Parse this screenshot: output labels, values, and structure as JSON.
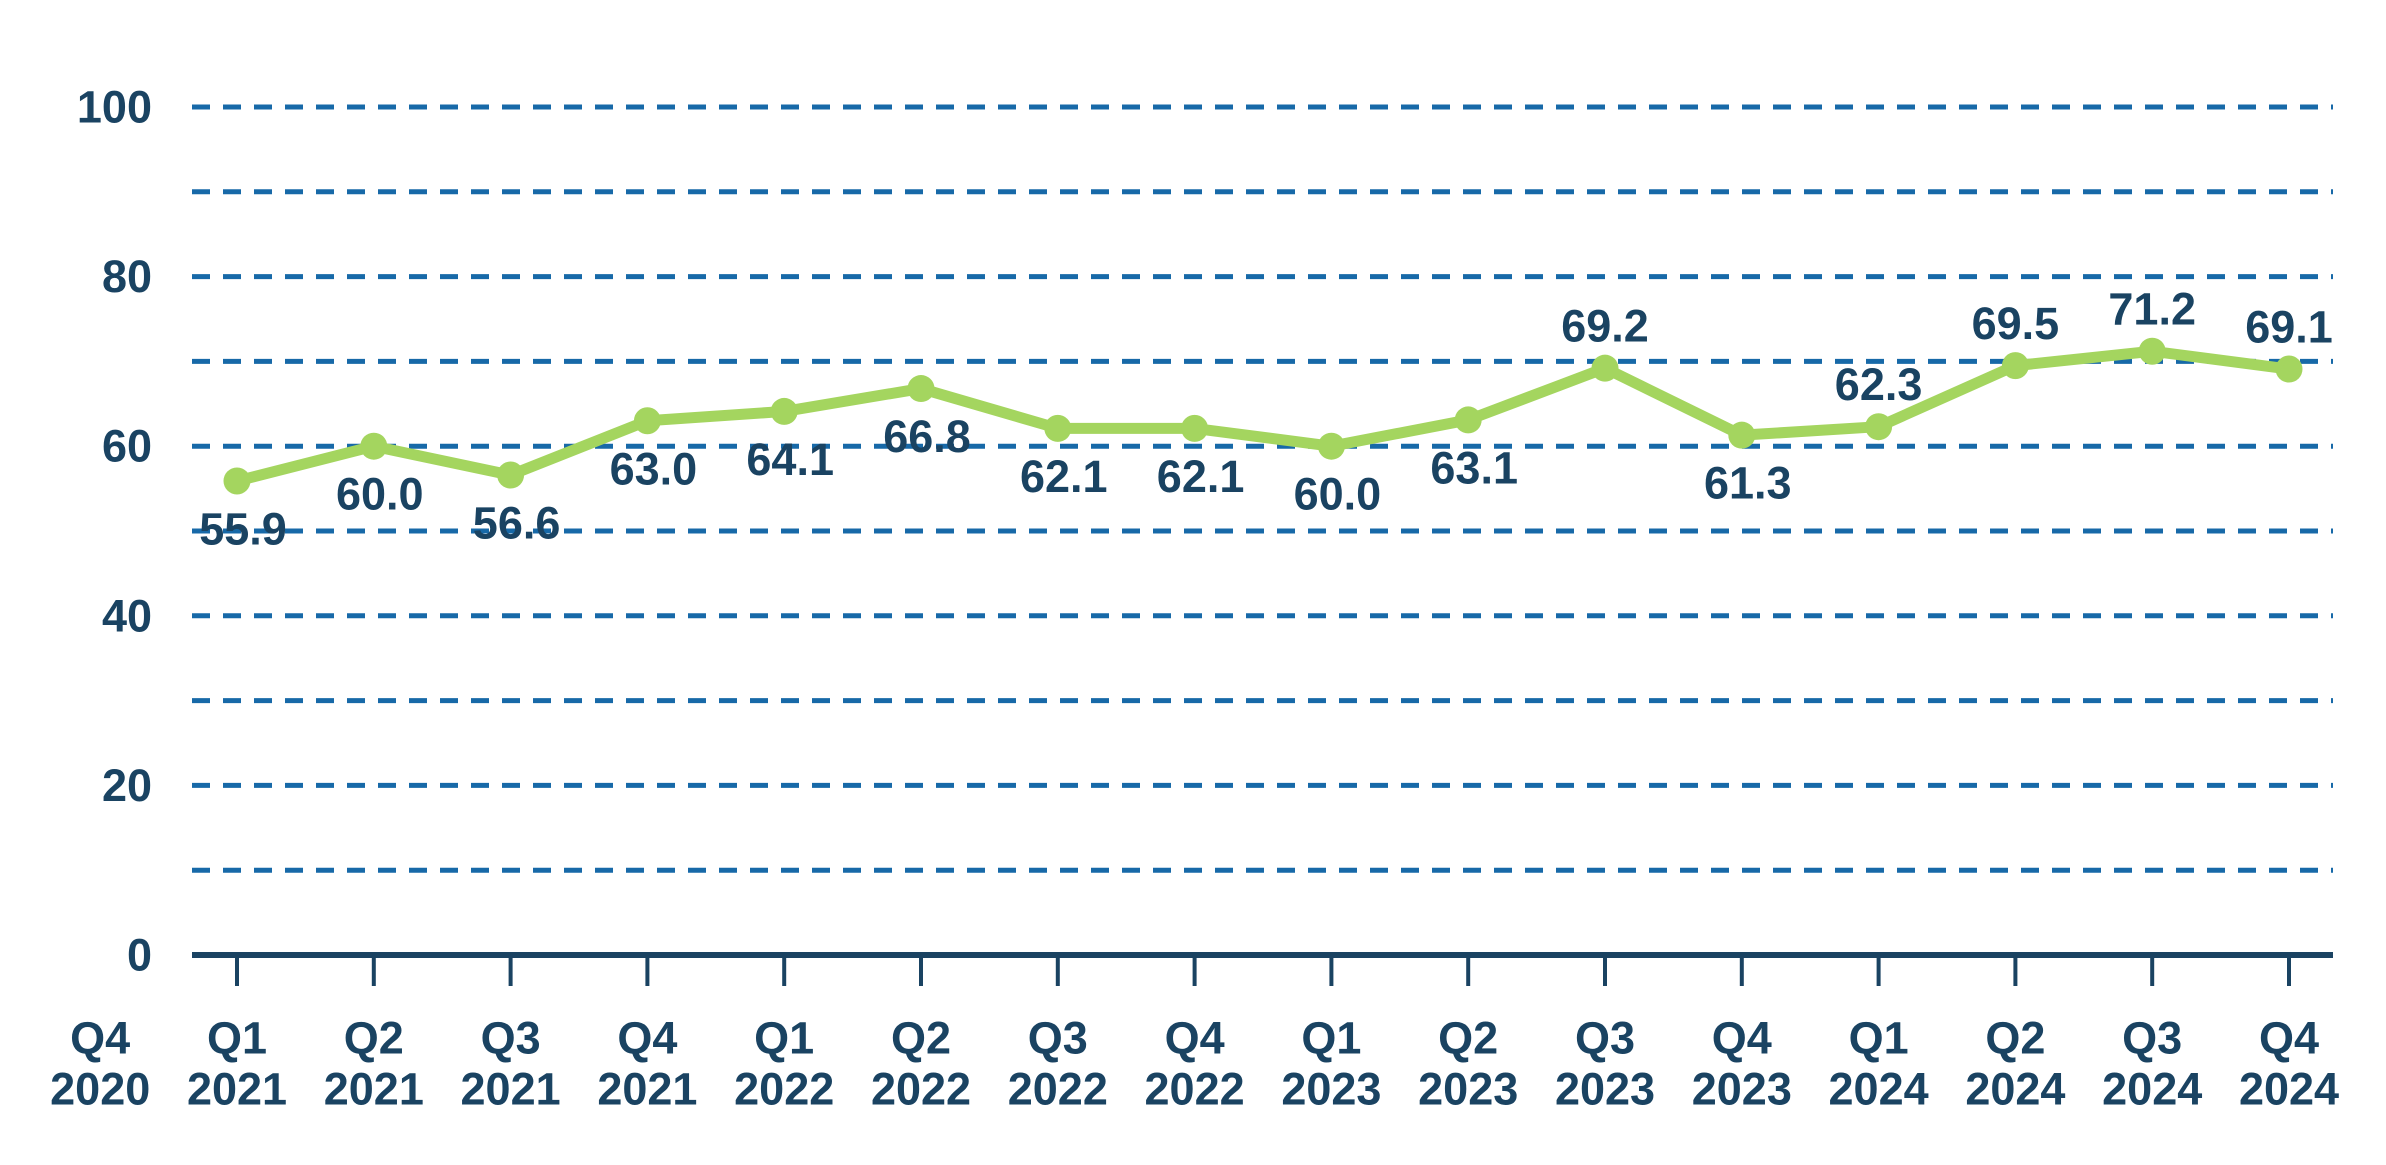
{
  "chart_data": {
    "type": "line",
    "title": "",
    "xlabel": "",
    "ylabel": "",
    "ylim": [
      0,
      100
    ],
    "grid": "horizontal-dashed",
    "legend": "none",
    "colors": {
      "line": "#a4d55f",
      "marker": "#a4d55f",
      "text": "#1a4362",
      "gridline": "#1769a8",
      "background": "#ffffff"
    },
    "y_axis": {
      "min": 0,
      "max": 100,
      "tick_labels": [
        {
          "value": 0,
          "label": "0"
        },
        {
          "value": 20,
          "label": "20"
        },
        {
          "value": 40,
          "label": "40"
        },
        {
          "value": 60,
          "label": "60"
        },
        {
          "value": 80,
          "label": "80"
        },
        {
          "value": 100,
          "label": "100"
        }
      ],
      "gridline_values": [
        10,
        20,
        30,
        40,
        50,
        60,
        70,
        80,
        90,
        100
      ]
    },
    "categories": [
      {
        "quarter": "Q4",
        "year": "2020",
        "has_tick": false
      },
      {
        "quarter": "Q1",
        "year": "2021",
        "has_tick": true
      },
      {
        "quarter": "Q2",
        "year": "2021",
        "has_tick": true
      },
      {
        "quarter": "Q3",
        "year": "2021",
        "has_tick": true
      },
      {
        "quarter": "Q4",
        "year": "2021",
        "has_tick": true
      },
      {
        "quarter": "Q1",
        "year": "2022",
        "has_tick": true
      },
      {
        "quarter": "Q2",
        "year": "2022",
        "has_tick": true
      },
      {
        "quarter": "Q3",
        "year": "2022",
        "has_tick": true
      },
      {
        "quarter": "Q4",
        "year": "2022",
        "has_tick": true
      },
      {
        "quarter": "Q1",
        "year": "2023",
        "has_tick": true
      },
      {
        "quarter": "Q2",
        "year": "2023",
        "has_tick": true
      },
      {
        "quarter": "Q3",
        "year": "2023",
        "has_tick": true
      },
      {
        "quarter": "Q4",
        "year": "2023",
        "has_tick": true
      },
      {
        "quarter": "Q1",
        "year": "2024",
        "has_tick": true
      },
      {
        "quarter": "Q2",
        "year": "2024",
        "has_tick": true
      },
      {
        "quarter": "Q3",
        "year": "2024",
        "has_tick": true
      },
      {
        "quarter": "Q4",
        "year": "2024",
        "has_tick": true
      }
    ],
    "points": [
      {
        "category": "Q1 2021",
        "value": 55.9,
        "label": "55.9",
        "label_pos": "below"
      },
      {
        "category": "Q2 2021",
        "value": 60.0,
        "label": "60.0",
        "label_pos": "below"
      },
      {
        "category": "Q3 2021",
        "value": 56.6,
        "label": "56.6",
        "label_pos": "below"
      },
      {
        "category": "Q4 2021",
        "value": 63.0,
        "label": "63.0",
        "label_pos": "below"
      },
      {
        "category": "Q1 2022",
        "value": 64.1,
        "label": "64.1",
        "label_pos": "below"
      },
      {
        "category": "Q2 2022",
        "value": 66.8,
        "label": "66.8",
        "label_pos": "below"
      },
      {
        "category": "Q3 2022",
        "value": 62.1,
        "label": "62.1",
        "label_pos": "below"
      },
      {
        "category": "Q4 2022",
        "value": 62.1,
        "label": "62.1",
        "label_pos": "below"
      },
      {
        "category": "Q1 2023",
        "value": 60.0,
        "label": "60.0",
        "label_pos": "below"
      },
      {
        "category": "Q2 2023",
        "value": 63.1,
        "label": "63.1",
        "label_pos": "below"
      },
      {
        "category": "Q3 2023",
        "value": 69.2,
        "label": "69.2",
        "label_pos": "above"
      },
      {
        "category": "Q4 2023",
        "value": 61.3,
        "label": "61.3",
        "label_pos": "below"
      },
      {
        "category": "Q1 2024",
        "value": 62.3,
        "label": "62.3",
        "label_pos": "above"
      },
      {
        "category": "Q2 2024",
        "value": 69.5,
        "label": "69.5",
        "label_pos": "above"
      },
      {
        "category": "Q3 2024",
        "value": 71.2,
        "label": "71.2",
        "label_pos": "above"
      },
      {
        "category": "Q4 2024",
        "value": 69.1,
        "label": "69.1",
        "label_pos": "above"
      }
    ]
  }
}
